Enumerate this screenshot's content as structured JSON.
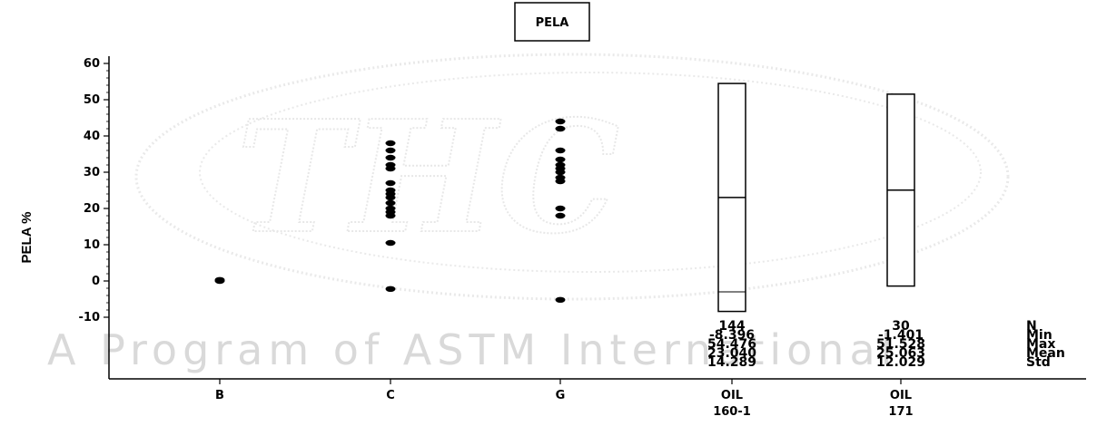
{
  "chart_data": {
    "type": "scatter",
    "title": "PELA",
    "ylabel": "PELA %",
    "xlabel": "",
    "ylim": [
      -10,
      60
    ],
    "yticks": [
      60,
      50,
      40,
      30,
      20,
      10,
      0,
      -10
    ],
    "categories": [
      {
        "key": "B",
        "label_lines": [
          "B"
        ]
      },
      {
        "key": "C",
        "label_lines": [
          "C"
        ]
      },
      {
        "key": "G",
        "label_lines": [
          "G"
        ]
      },
      {
        "key": "OIL160",
        "label_lines": [
          "OIL",
          "160-1"
        ]
      },
      {
        "key": "OIL171",
        "label_lines": [
          "OIL",
          "171"
        ]
      }
    ],
    "points": {
      "B": [
        0.0,
        0.3
      ],
      "C": [
        -2.2,
        10.5,
        18,
        19,
        20,
        21.5,
        23,
        24,
        25,
        27,
        31,
        32,
        34,
        36,
        38
      ],
      "G": [
        -5.2,
        18,
        20,
        27.5,
        28.5,
        30,
        31,
        32,
        33.5,
        36,
        42,
        44
      ]
    },
    "boxes": [
      {
        "category": "OIL160",
        "min": -8.396,
        "max": 54.476,
        "mean": 23.04,
        "inner_line": -3.0
      },
      {
        "category": "OIL171",
        "min": -1.401,
        "max": 51.528,
        "mean": 25.063
      }
    ],
    "stats": {
      "row_labels": [
        "N",
        "Min",
        "Max",
        "Mean",
        "Std"
      ],
      "columns": [
        {
          "category": "OIL160",
          "values": [
            "144",
            "-8.396",
            "54.476",
            "23.040",
            "14.289"
          ]
        },
        {
          "category": "OIL171",
          "values": [
            "30",
            "-1.401",
            "51.528",
            "25.063",
            "12.029"
          ]
        }
      ]
    },
    "grid": false,
    "legend": "none"
  },
  "watermark": "A Program of ASTM International",
  "colors": {
    "points": "#000000",
    "axis": "#000000",
    "watermark": "#d6d6d6"
  }
}
